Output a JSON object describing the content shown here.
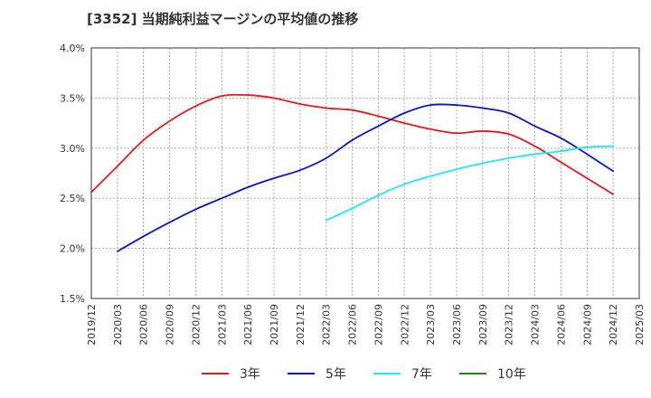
{
  "chart_data": {
    "type": "line",
    "title": "[3352]  当期純利益マージンの平均値の推移",
    "xlabel": "",
    "ylabel": "",
    "ylim": [
      1.5,
      4.0
    ],
    "y_ticks": [
      "1.5%",
      "2.0%",
      "2.5%",
      "3.0%",
      "3.5%",
      "4.0%"
    ],
    "y_tick_values": [
      1.5,
      2.0,
      2.5,
      3.0,
      3.5,
      4.0
    ],
    "x_ticks": [
      "2019/12",
      "2020/03",
      "2020/06",
      "2020/09",
      "2020/12",
      "2021/03",
      "2021/06",
      "2021/09",
      "2021/12",
      "2022/03",
      "2022/06",
      "2022/09",
      "2022/12",
      "2023/03",
      "2023/06",
      "2023/09",
      "2023/12",
      "2024/03",
      "2024/06",
      "2024/09",
      "2024/12",
      "2025/03"
    ],
    "grid": true,
    "legend_position": "bottom",
    "series": [
      {
        "name": "3年",
        "color": "#e31a1c",
        "points": [
          [
            "2019/12",
            2.56
          ],
          [
            "2020/03",
            2.82
          ],
          [
            "2020/06",
            3.08
          ],
          [
            "2020/09",
            3.27
          ],
          [
            "2020/12",
            3.42
          ],
          [
            "2021/03",
            3.52
          ],
          [
            "2021/06",
            3.53
          ],
          [
            "2021/09",
            3.5
          ],
          [
            "2021/12",
            3.44
          ],
          [
            "2022/03",
            3.4
          ],
          [
            "2022/06",
            3.38
          ],
          [
            "2022/09",
            3.32
          ],
          [
            "2022/12",
            3.25
          ],
          [
            "2023/03",
            3.19
          ],
          [
            "2023/06",
            3.15
          ],
          [
            "2023/09",
            3.17
          ],
          [
            "2023/12",
            3.14
          ],
          [
            "2024/03",
            3.02
          ],
          [
            "2024/06",
            2.86
          ],
          [
            "2024/09",
            2.7
          ],
          [
            "2024/12",
            2.54
          ]
        ]
      },
      {
        "name": "5年",
        "color": "#0a14c8",
        "points": [
          [
            "2020/03",
            1.97
          ],
          [
            "2020/06",
            2.12
          ],
          [
            "2020/09",
            2.26
          ],
          [
            "2020/12",
            2.39
          ],
          [
            "2021/03",
            2.5
          ],
          [
            "2021/06",
            2.61
          ],
          [
            "2021/09",
            2.7
          ],
          [
            "2021/12",
            2.78
          ],
          [
            "2022/03",
            2.9
          ],
          [
            "2022/06",
            3.08
          ],
          [
            "2022/09",
            3.22
          ],
          [
            "2022/12",
            3.35
          ],
          [
            "2023/03",
            3.43
          ],
          [
            "2023/06",
            3.43
          ],
          [
            "2023/09",
            3.4
          ],
          [
            "2023/12",
            3.35
          ],
          [
            "2024/03",
            3.22
          ],
          [
            "2024/06",
            3.1
          ],
          [
            "2024/09",
            2.94
          ],
          [
            "2024/12",
            2.77
          ]
        ]
      },
      {
        "name": "7年",
        "color": "#22e6f0",
        "points": [
          [
            "2022/03",
            2.28
          ],
          [
            "2022/06",
            2.4
          ],
          [
            "2022/09",
            2.53
          ],
          [
            "2022/12",
            2.64
          ],
          [
            "2023/03",
            2.72
          ],
          [
            "2023/06",
            2.79
          ],
          [
            "2023/09",
            2.85
          ],
          [
            "2023/12",
            2.9
          ],
          [
            "2024/03",
            2.94
          ],
          [
            "2024/06",
            2.97
          ],
          [
            "2024/09",
            3.01
          ],
          [
            "2024/12",
            3.02
          ]
        ]
      },
      {
        "name": "10年",
        "color": "#1a8a1a",
        "points": []
      }
    ]
  }
}
